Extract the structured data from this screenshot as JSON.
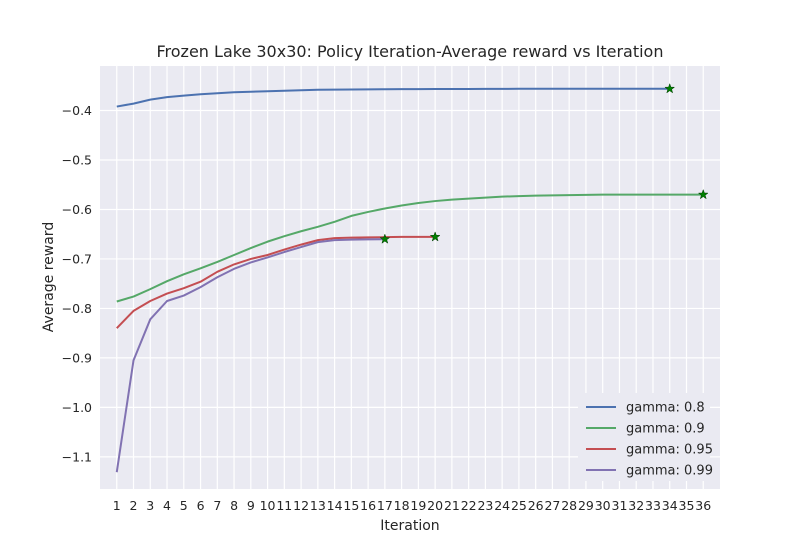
{
  "chart_data": {
    "type": "line",
    "title": "Frozen Lake 30x30: Policy Iteration-Average reward vs Iteration",
    "xlabel": "Iteration",
    "ylabel": "Average reward",
    "xlim": [
      0,
      37
    ],
    "ylim": [
      -1.165,
      -0.31
    ],
    "x_ticks": [
      1,
      2,
      3,
      4,
      5,
      6,
      7,
      8,
      9,
      10,
      11,
      12,
      13,
      14,
      15,
      16,
      17,
      18,
      19,
      20,
      21,
      22,
      23,
      24,
      25,
      26,
      27,
      28,
      29,
      30,
      31,
      32,
      33,
      34,
      35,
      36
    ],
    "y_ticks": [
      -1.1,
      -1.0,
      -0.9,
      -0.8,
      -0.7,
      -0.6,
      -0.5,
      -0.4
    ],
    "y_tick_labels": [
      "−1.1",
      "−1.0",
      "−0.9",
      "−0.8",
      "−0.7",
      "−0.6",
      "−0.5",
      "−0.4"
    ],
    "grid": true,
    "legend_position": "lower-right",
    "background_color": "#EAEAF2",
    "marker_color": "#008000",
    "series": [
      {
        "name": "gamma: 0.8",
        "color": "#4C72B0",
        "x": [
          1,
          2,
          3,
          4,
          5,
          6,
          7,
          8,
          9,
          10,
          11,
          12,
          13,
          14,
          15,
          16,
          17,
          18,
          19,
          20,
          21,
          22,
          23,
          24,
          25,
          26,
          27,
          28,
          29,
          30,
          31,
          32,
          33,
          34
        ],
        "values": [
          -0.392,
          -0.386,
          -0.378,
          -0.373,
          -0.37,
          -0.367,
          -0.365,
          -0.363,
          -0.362,
          -0.361,
          -0.36,
          -0.359,
          -0.358,
          -0.3578,
          -0.3575,
          -0.3572,
          -0.357,
          -0.3568,
          -0.3567,
          -0.3566,
          -0.3565,
          -0.3564,
          -0.3563,
          -0.3562,
          -0.3561,
          -0.356,
          -0.356,
          -0.356,
          -0.356,
          -0.356,
          -0.356,
          -0.356,
          -0.356,
          -0.356
        ],
        "marker_x": 34,
        "marker_y": -0.356
      },
      {
        "name": "gamma: 0.9",
        "color": "#55A868",
        "x": [
          1,
          2,
          3,
          4,
          5,
          6,
          7,
          8,
          9,
          10,
          11,
          12,
          13,
          14,
          15,
          16,
          17,
          18,
          19,
          20,
          21,
          22,
          23,
          24,
          25,
          26,
          27,
          28,
          29,
          30,
          31,
          32,
          33,
          34,
          35,
          36
        ],
        "values": [
          -0.786,
          -0.776,
          -0.761,
          -0.745,
          -0.731,
          -0.719,
          -0.706,
          -0.692,
          -0.678,
          -0.665,
          -0.654,
          -0.644,
          -0.635,
          -0.625,
          -0.613,
          -0.605,
          -0.598,
          -0.592,
          -0.587,
          -0.583,
          -0.58,
          -0.578,
          -0.576,
          -0.574,
          -0.573,
          -0.572,
          -0.5715,
          -0.571,
          -0.5705,
          -0.57,
          -0.57,
          -0.57,
          -0.57,
          -0.57,
          -0.57,
          -0.57
        ],
        "marker_x": 36,
        "marker_y": -0.57
      },
      {
        "name": "gamma: 0.95",
        "color": "#C44E52",
        "x": [
          1,
          2,
          3,
          4,
          5,
          6,
          7,
          8,
          9,
          10,
          11,
          12,
          13,
          14,
          15,
          16,
          17,
          18,
          19,
          20
        ],
        "values": [
          -0.84,
          -0.805,
          -0.785,
          -0.77,
          -0.759,
          -0.746,
          -0.726,
          -0.711,
          -0.7,
          -0.692,
          -0.681,
          -0.671,
          -0.662,
          -0.658,
          -0.657,
          -0.6565,
          -0.656,
          -0.6555,
          -0.6555,
          -0.6555
        ],
        "marker_x": 20,
        "marker_y": -0.6555
      },
      {
        "name": "gamma: 0.99",
        "color": "#8172B2",
        "x": [
          1,
          2,
          3,
          4,
          5,
          6,
          7,
          8,
          9,
          10,
          11,
          12,
          13,
          14,
          15,
          16,
          17
        ],
        "values": [
          -1.131,
          -0.905,
          -0.822,
          -0.785,
          -0.774,
          -0.757,
          -0.737,
          -0.72,
          -0.707,
          -0.697,
          -0.686,
          -0.676,
          -0.666,
          -0.662,
          -0.661,
          -0.6605,
          -0.66
        ],
        "marker_x": 17,
        "marker_y": -0.66
      }
    ]
  }
}
